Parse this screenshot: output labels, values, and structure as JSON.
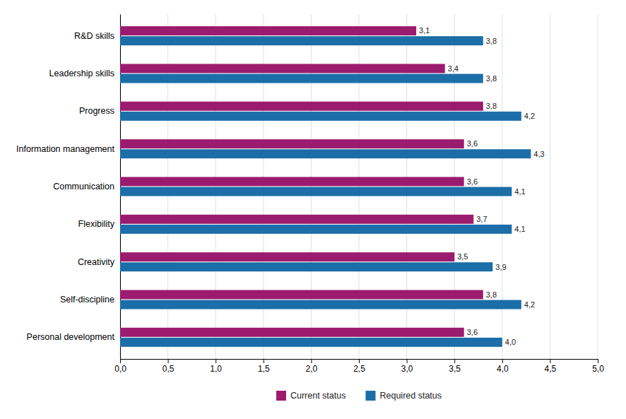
{
  "chart_data": {
    "type": "bar",
    "orientation": "horizontal",
    "categories": [
      "Personal development",
      "Self-discipline",
      "Creativity",
      "Flexibility",
      "Communication",
      "Information management",
      "Progress",
      "Leadership skills",
      "R&D skills"
    ],
    "series": [
      {
        "name": "Current status",
        "color": "#9B1B6E",
        "values": [
          3.6,
          3.8,
          3.5,
          3.7,
          3.6,
          3.6,
          3.8,
          3.4,
          3.1
        ],
        "value_labels": [
          "3,6",
          "3,8",
          "3,5",
          "3,7",
          "3,6",
          "3,6",
          "3,8",
          "3,4",
          "3,1"
        ]
      },
      {
        "name": "Required status",
        "color": "#1B6EA8",
        "values": [
          4.0,
          4.2,
          3.9,
          4.1,
          4.1,
          4.3,
          4.2,
          3.8,
          3.8
        ],
        "value_labels": [
          "4,0",
          "4,2",
          "3,9",
          "4,1",
          "4,1",
          "4,3",
          "4,2",
          "3,8",
          "3,8"
        ]
      }
    ],
    "xlim": [
      0,
      5.0
    ],
    "xticks": [
      {
        "value": 0.0,
        "label": "0,0"
      },
      {
        "value": 0.5,
        "label": "0,5"
      },
      {
        "value": 1.0,
        "label": "1,0"
      },
      {
        "value": 1.5,
        "label": "1,5"
      },
      {
        "value": 2.0,
        "label": "2,0"
      },
      {
        "value": 2.5,
        "label": "2,5"
      },
      {
        "value": 3.0,
        "label": "3,0"
      },
      {
        "value": 3.5,
        "label": "3,5"
      },
      {
        "value": 4.0,
        "label": "4,0"
      },
      {
        "value": 4.5,
        "label": "4,5"
      },
      {
        "value": 5.0,
        "label": "5,0"
      }
    ],
    "grid": true,
    "data_labels": true,
    "legend": "bottom"
  }
}
